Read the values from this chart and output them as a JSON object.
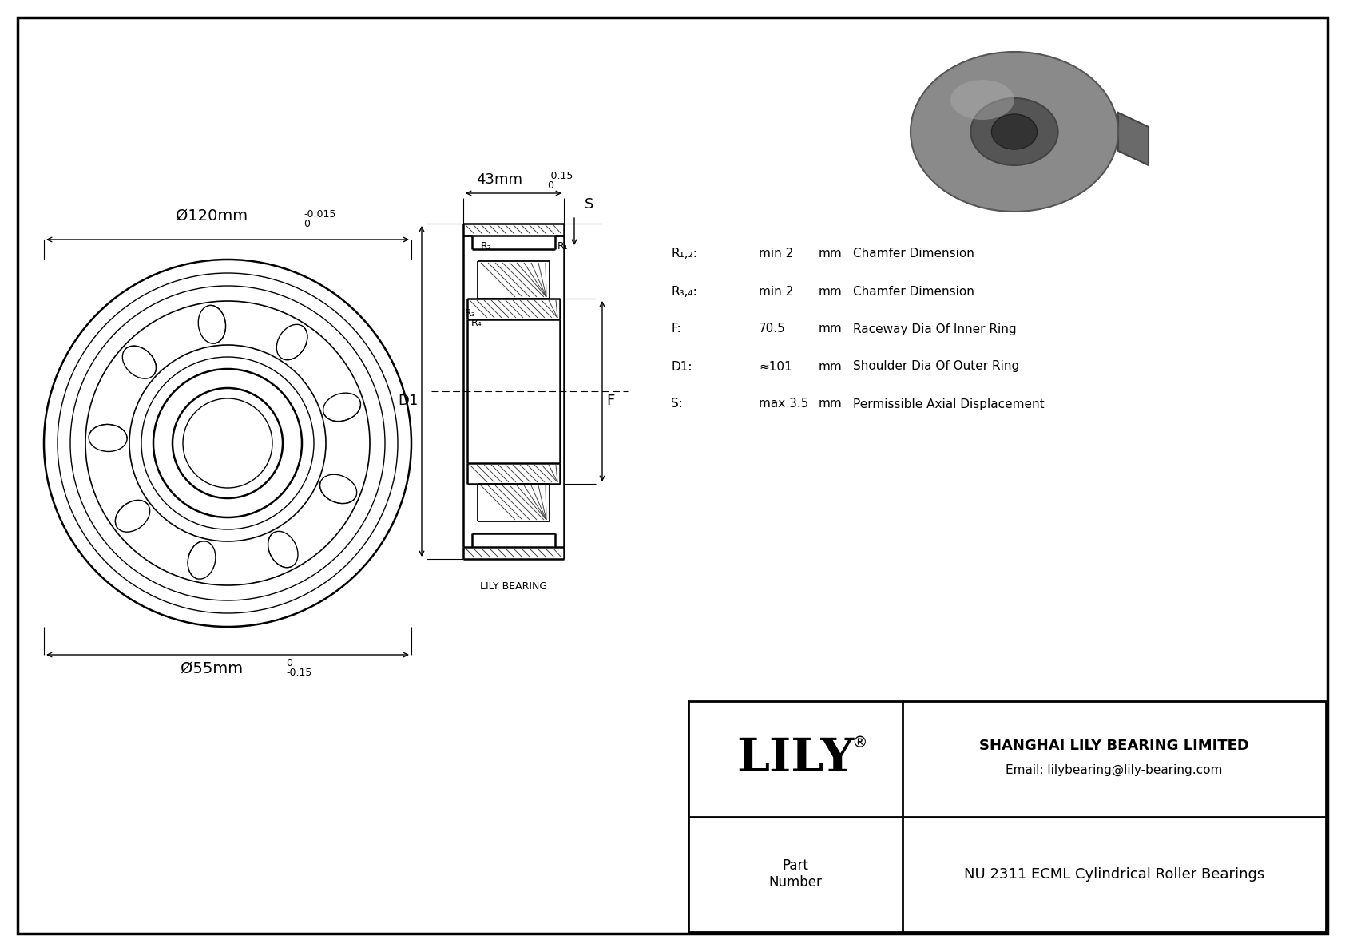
{
  "bg_color": "#ffffff",
  "border_color": "#000000",
  "outer_dia_label": "Ø120mm",
  "outer_dia_tol_sup": "0",
  "outer_dia_tol_sub": "-0.015",
  "inner_dia_label": "Ø55mm",
  "inner_dia_tol_sup": "0",
  "inner_dia_tol_sub": "-0.15",
  "width_label": "43mm",
  "width_tol_sup": "0",
  "width_tol_sub": "-0.15",
  "D1_label": "D1",
  "F_label": "F",
  "S_label": "S",
  "R1_label": "R₁",
  "R2_label": "R₂",
  "R3_label": "R₃",
  "R4_label": "R₄",
  "R12_spec": "R₁,₂:",
  "R12_val": "min 2",
  "R12_unit": "mm",
  "R12_desc": "Chamfer Dimension",
  "R34_spec": "R₃,₄:",
  "R34_val": "min 2",
  "R34_unit": "mm",
  "R34_desc": "Chamfer Dimension",
  "F_spec": "F:",
  "F_val": "70.5",
  "F_unit": "mm",
  "F_desc": "Raceway Dia Of Inner Ring",
  "D1_spec": "D1:",
  "D1_val": "≈101",
  "D1_unit": "mm",
  "D1_desc": "Shoulder Dia Of Outer Ring",
  "S_spec": "S:",
  "S_val": "max 3.5",
  "S_unit": "mm",
  "S_desc": "Permissible Axial Displacement",
  "lily_bearing_text": "LILY BEARING",
  "company": "SHANGHAI LILY BEARING LIMITED",
  "email": "Email: lilybearing@lily-bearing.com",
  "lily_text": "LILY",
  "part_label": "Part\nNumber",
  "title": "NU 2311 ECML Cylindrical Roller Bearings",
  "fig_width": 1684,
  "fig_height": 1191
}
